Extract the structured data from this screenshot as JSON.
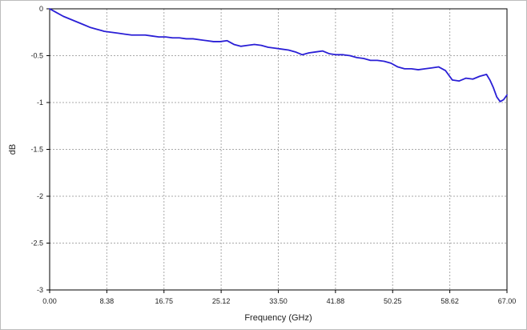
{
  "chart_data": {
    "type": "line",
    "title": "",
    "xlabel": "Frequency (GHz)",
    "ylabel": "dB",
    "xlim": [
      0,
      67
    ],
    "ylim": [
      -3,
      0
    ],
    "x_ticks": [
      "0.00",
      "8.38",
      "16.75",
      "25.12",
      "33.50",
      "41.88",
      "50.25",
      "58.62",
      "67.00"
    ],
    "y_ticks": [
      "0",
      "-0.5",
      "-1",
      "-1.5",
      "-2",
      "-2.5",
      "-3"
    ],
    "grid": true,
    "legend": "none",
    "colors": {
      "line": "#2a1fd6",
      "grid": "#a9a9a9",
      "axis": "#000000"
    },
    "series": [
      {
        "x": [
          0,
          0.5,
          1,
          2,
          3,
          4,
          5,
          6,
          7,
          8,
          9,
          10,
          11,
          12,
          13,
          14,
          15,
          16,
          17,
          18,
          19,
          20,
          21,
          22,
          23,
          24,
          25,
          26,
          27,
          28,
          29,
          30,
          31,
          32,
          33,
          34,
          35,
          36,
          37,
          38,
          39,
          40,
          41,
          42,
          43,
          44,
          45,
          46,
          47,
          48,
          49,
          50,
          51,
          52,
          53,
          54,
          55,
          56,
          57,
          58,
          59,
          60,
          61,
          62,
          63,
          64,
          64.5,
          65,
          65.5,
          66,
          66.5,
          67
        ],
        "y": [
          0.0,
          -0.02,
          -0.04,
          -0.08,
          -0.11,
          -0.14,
          -0.17,
          -0.2,
          -0.22,
          -0.24,
          -0.25,
          -0.26,
          -0.27,
          -0.28,
          -0.28,
          -0.28,
          -0.29,
          -0.3,
          -0.3,
          -0.31,
          -0.31,
          -0.32,
          -0.32,
          -0.33,
          -0.34,
          -0.35,
          -0.35,
          -0.34,
          -0.38,
          -0.4,
          -0.39,
          -0.38,
          -0.39,
          -0.41,
          -0.42,
          -0.43,
          -0.44,
          -0.46,
          -0.49,
          -0.47,
          -0.46,
          -0.45,
          -0.48,
          -0.49,
          -0.49,
          -0.5,
          -0.52,
          -0.53,
          -0.55,
          -0.55,
          -0.56,
          -0.58,
          -0.62,
          -0.64,
          -0.64,
          -0.65,
          -0.64,
          -0.63,
          -0.62,
          -0.66,
          -0.76,
          -0.77,
          -0.74,
          -0.75,
          -0.72,
          -0.7,
          -0.76,
          -0.84,
          -0.94,
          -0.99,
          -0.97,
          -0.92
        ]
      }
    ]
  }
}
